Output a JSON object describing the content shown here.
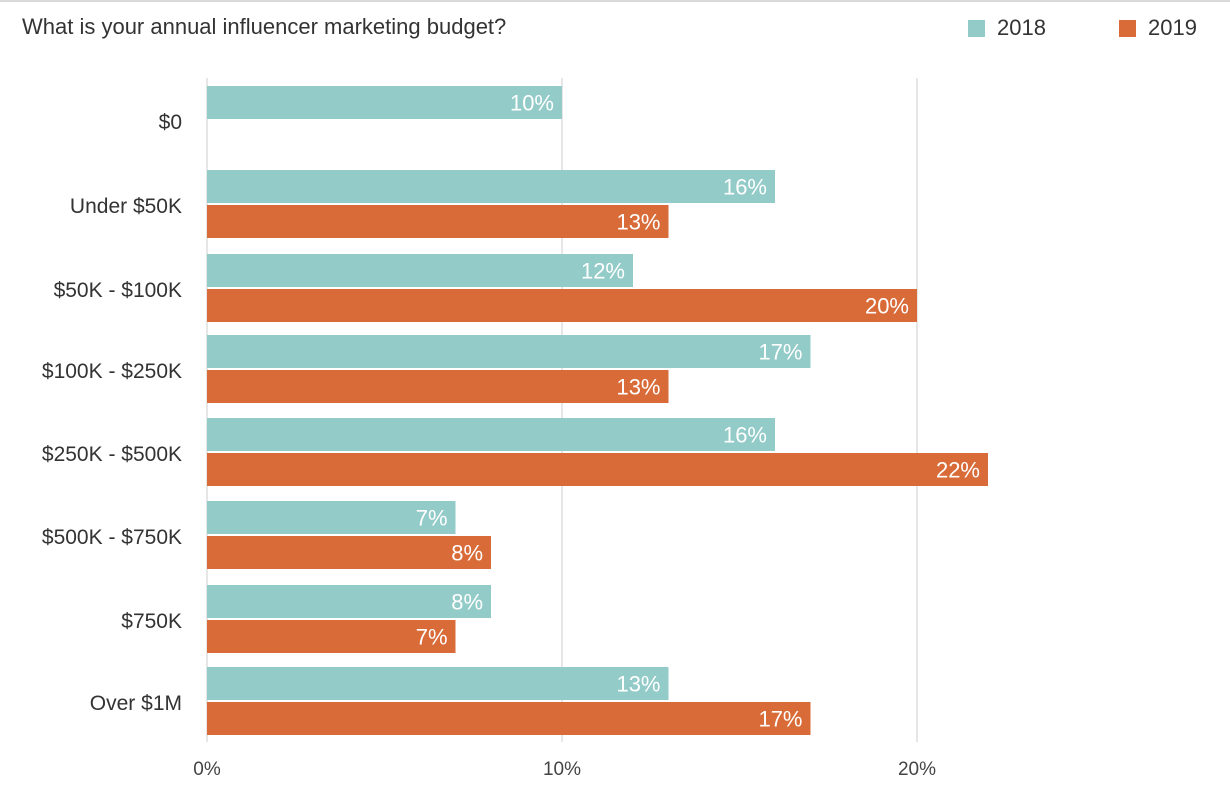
{
  "chart_data": {
    "type": "bar",
    "orientation": "horizontal",
    "title": "What is your annual influencer marketing budget?",
    "categories": [
      "$0",
      "Under $50K",
      "$50K - $100K",
      "$100K - $250K",
      "$250K - $500K",
      "$500K - $750K",
      "$750K",
      "Over $1M"
    ],
    "series": [
      {
        "name": "2018",
        "color": "#93cbc8",
        "values": [
          10,
          16,
          12,
          17,
          16,
          7,
          8,
          13
        ]
      },
      {
        "name": "2019",
        "color": "#d96b38",
        "values": [
          null,
          13,
          20,
          13,
          22,
          8,
          7,
          17
        ]
      }
    ],
    "value_labels": {
      "2018": [
        "10%",
        "16%",
        "12%",
        "17%",
        "16%",
        "7%",
        "8%",
        "13%"
      ],
      "2019": [
        "",
        "13%",
        "20%",
        "13%",
        "22%",
        "8%",
        "7%",
        "17%"
      ]
    },
    "xlim": [
      0,
      23
    ],
    "xticks": [
      0,
      10,
      20
    ],
    "xtick_labels": [
      "0%",
      "10%",
      "20%"
    ],
    "grid": true,
    "legend_position": "top-right"
  }
}
